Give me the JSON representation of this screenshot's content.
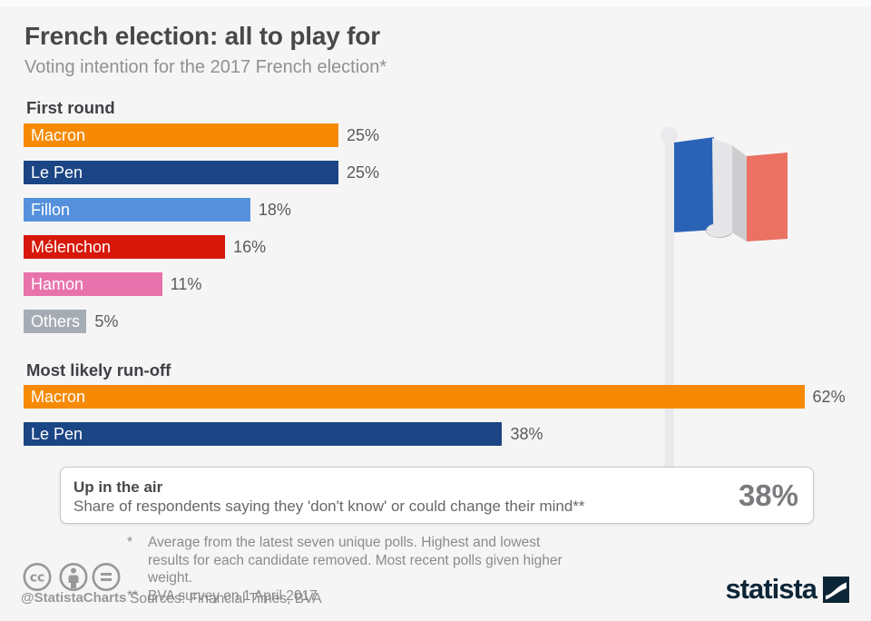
{
  "header": {
    "title": "French election: all to play for",
    "subtitle": "Voting intention for the 2017 French election*"
  },
  "chart_data": {
    "type": "bar",
    "orientation": "horizontal",
    "value_unit": "%",
    "xlim": [
      0,
      62
    ],
    "grid": false,
    "legend": false,
    "title": "French election: all to play for",
    "subtitle": "Voting intention for the 2017 French election*",
    "sections": [
      {
        "label": "First round",
        "bars": [
          {
            "name": "Macron",
            "value": 25,
            "display": "25%",
            "color": "#F78A05"
          },
          {
            "name": "Le Pen",
            "value": 25,
            "display": "25%",
            "color": "#1B4584"
          },
          {
            "name": "Fillon",
            "value": 18,
            "display": "18%",
            "color": "#5590DC"
          },
          {
            "name": "Mélenchon",
            "value": 16,
            "display": "16%",
            "color": "#D6170A"
          },
          {
            "name": "Hamon",
            "value": 11,
            "display": "11%",
            "color": "#E873AC"
          },
          {
            "name": "Others",
            "value": 5,
            "display": "5%",
            "color": "#A6ACB4"
          }
        ]
      },
      {
        "label": "Most likely run-off",
        "bars": [
          {
            "name": "Macron",
            "value": 62,
            "display": "62%",
            "color": "#F78A05"
          },
          {
            "name": "Le Pen",
            "value": 38,
            "display": "38%",
            "color": "#1B4584"
          }
        ]
      }
    ]
  },
  "callout": {
    "title": "Up in the air",
    "description": "Share of respondents saying they 'don't know' or could change their mind**",
    "value": "38%"
  },
  "footnotes": [
    {
      "marker": "*",
      "text": "Average from the latest seven unique polls. Highest and lowest results for each candidate removed. Most recent polls given higher weight."
    },
    {
      "marker": "**",
      "text": "BVA survey on 1 April 2017"
    }
  ],
  "sources": "Sources: Financial Times, BVA",
  "footer": {
    "handle": "@StatistaCharts",
    "brand": "statista",
    "license_icons": [
      "cc-icon",
      "attribution-icon",
      "equals-icon"
    ]
  },
  "illustration": {
    "name": "french-flag",
    "colors": {
      "blue": "#2A63B6",
      "white": "#E6E6E8",
      "fold": "#CDCDCF",
      "red": "#EB7163",
      "pole": "#EAEAEC"
    }
  }
}
